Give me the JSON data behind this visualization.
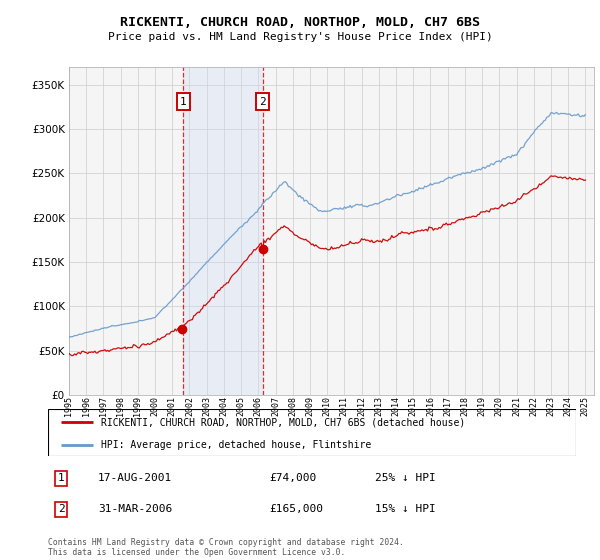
{
  "title": "RICKENTI, CHURCH ROAD, NORTHOP, MOLD, CH7 6BS",
  "subtitle": "Price paid vs. HM Land Registry's House Price Index (HPI)",
  "legend_line1": "RICKENTI, CHURCH ROAD, NORTHOP, MOLD, CH7 6BS (detached house)",
  "legend_line2": "HPI: Average price, detached house, Flintshire",
  "transaction1_date": "17-AUG-2001",
  "transaction1_price": "£74,000",
  "transaction1_hpi": "25% ↓ HPI",
  "transaction2_date": "31-MAR-2006",
  "transaction2_price": "£165,000",
  "transaction2_hpi": "15% ↓ HPI",
  "copyright": "Contains HM Land Registry data © Crown copyright and database right 2024.\nThis data is licensed under the Open Government Licence v3.0.",
  "red_color": "#cc0000",
  "blue_color": "#6699cc",
  "shade_color": "#ddeeff",
  "background_color": "#f5f5f5",
  "grid_color": "#cccccc",
  "ylim": [
    0,
    370000
  ],
  "yticks": [
    0,
    50000,
    100000,
    150000,
    200000,
    250000,
    300000,
    350000
  ],
  "xlim_start": 1995.0,
  "xlim_end": 2025.5,
  "transaction1_year": 2001.625,
  "transaction2_year": 2006.25
}
